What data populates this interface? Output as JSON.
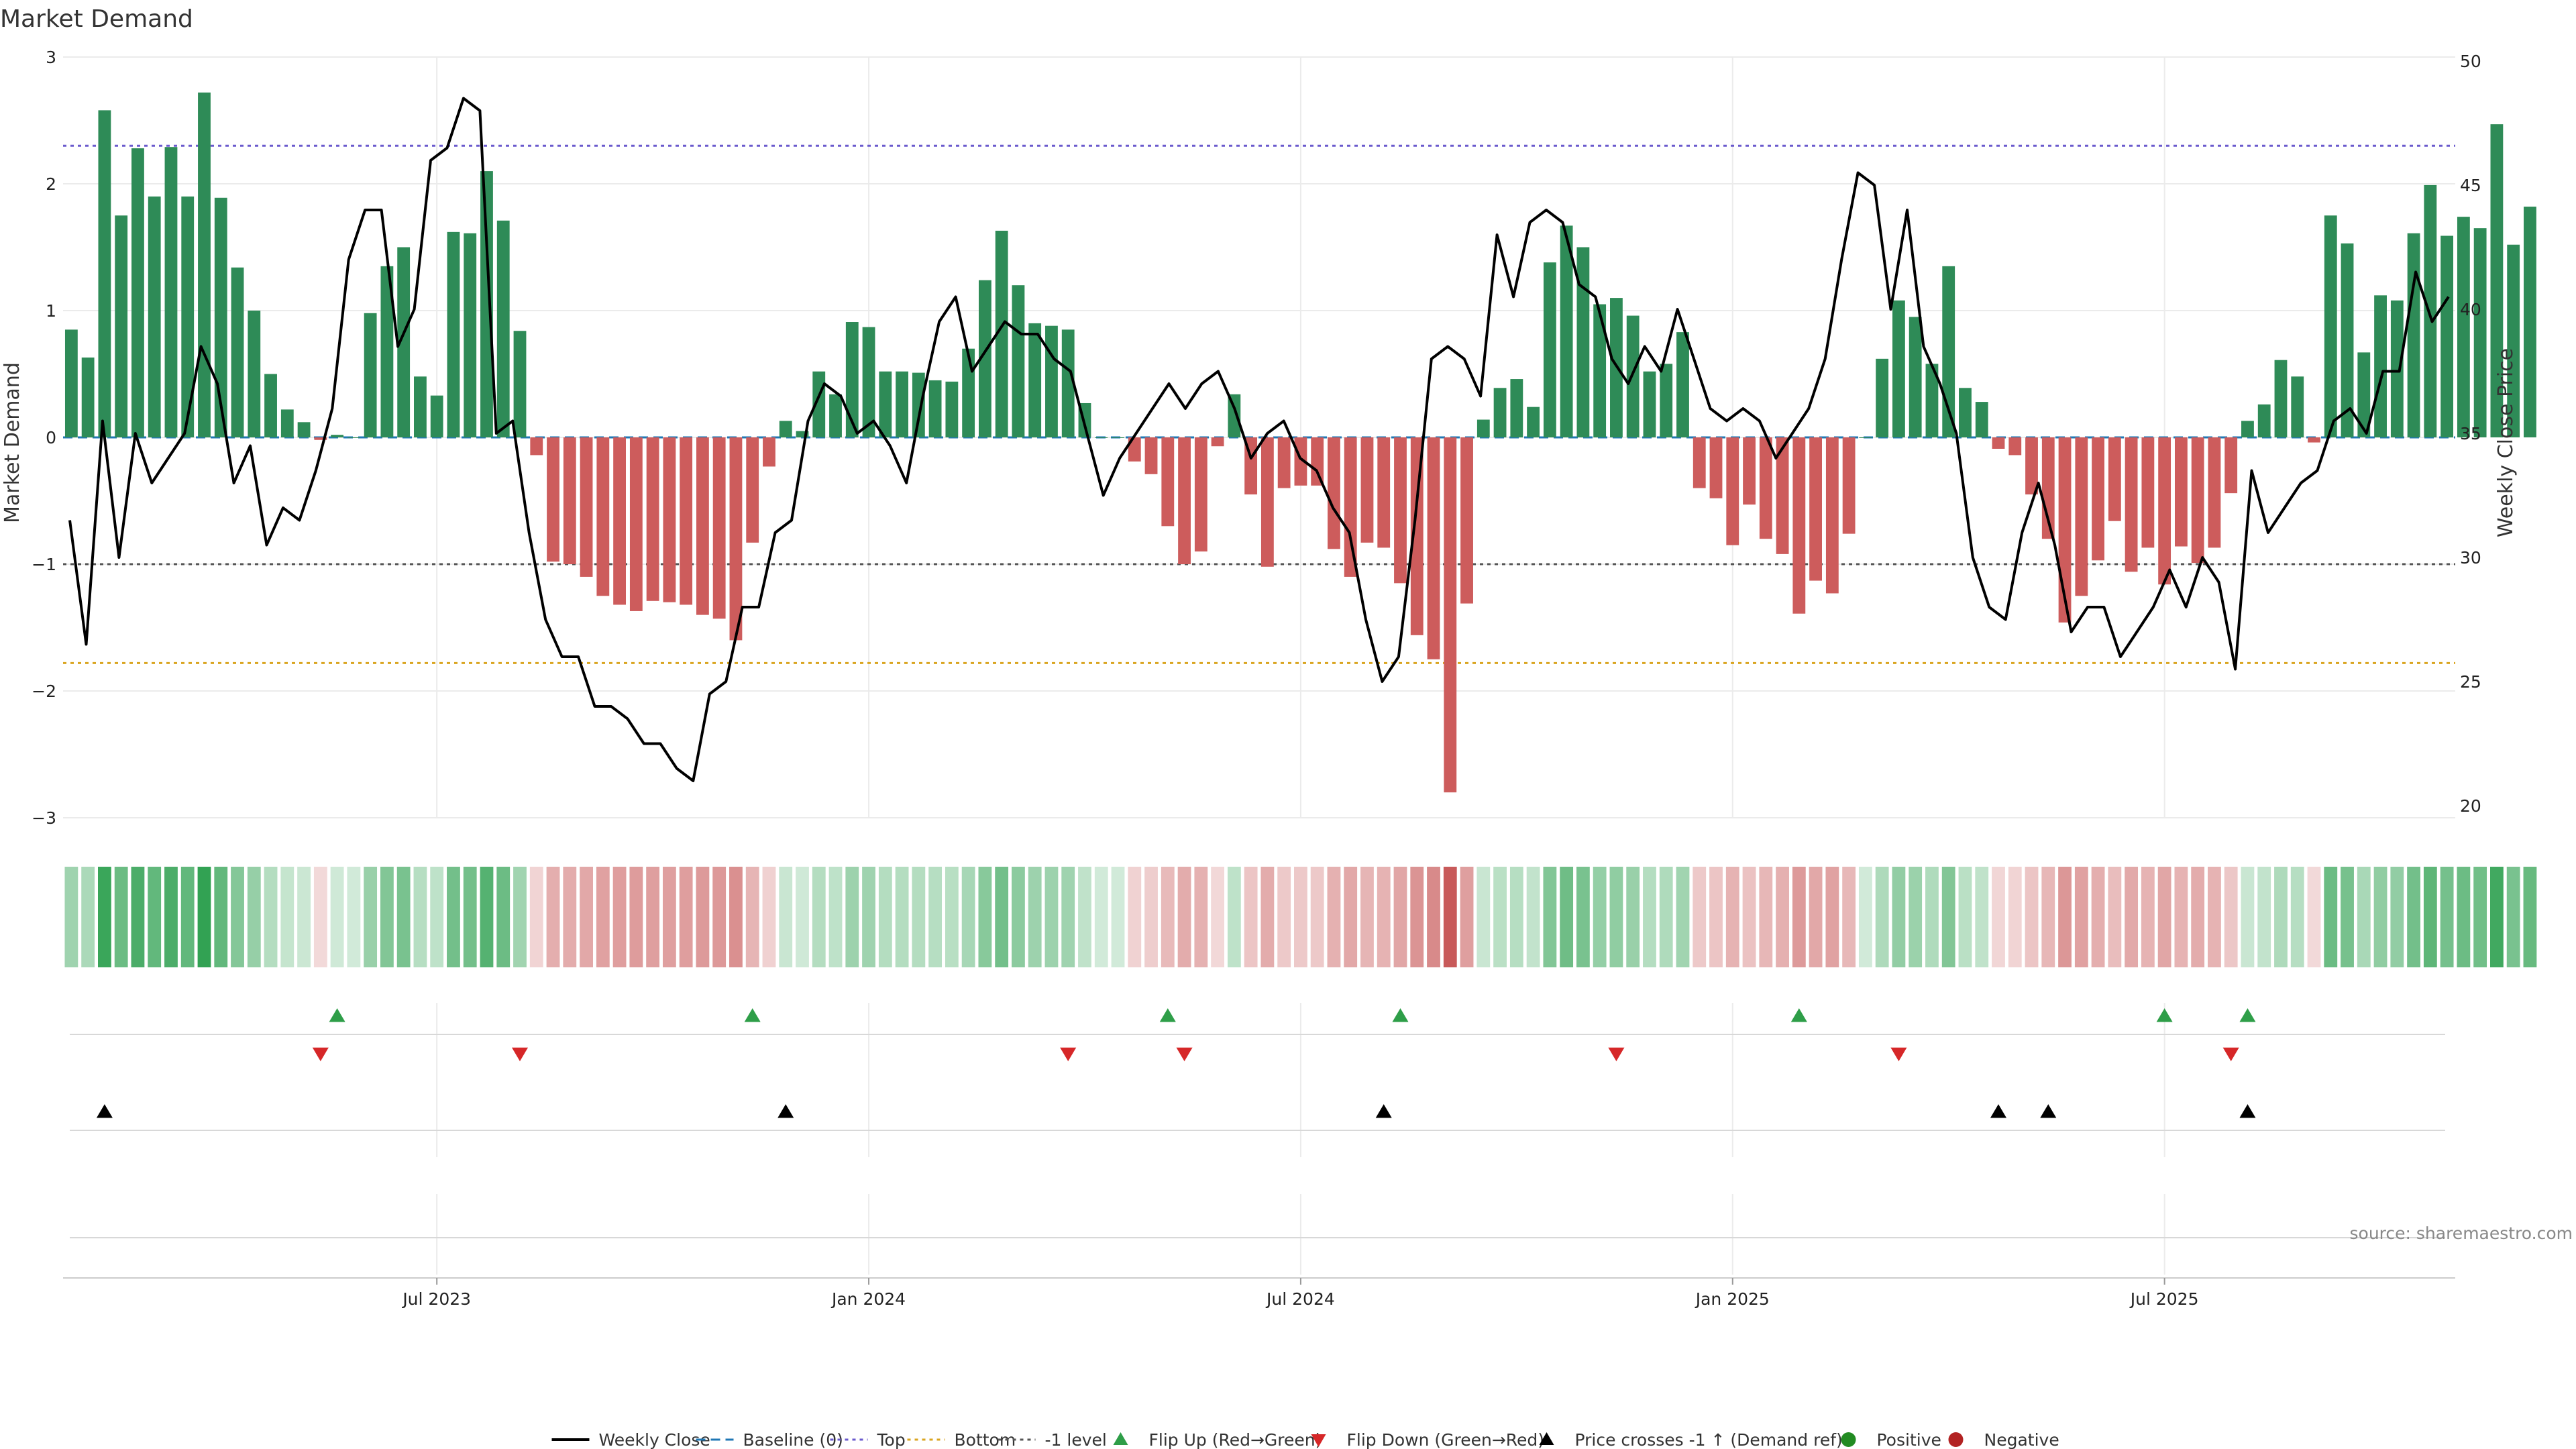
{
  "title": "Market Demand",
  "source": "source: sharemaestro.com",
  "colors": {
    "positive": "#2e8b57",
    "negative": "#cd5c5c",
    "price": "#000000",
    "top": "#6a5acd",
    "bottom": "#daa520",
    "minus1": "#555555",
    "baseline": "#1f77b4",
    "flip_up": "#2e9e48",
    "flip_down": "#d62728",
    "cross": "#000000",
    "pos_dot": "#228b22",
    "neg_dot": "#b22222"
  },
  "chart_data": {
    "type": "bar",
    "title": "Market Demand",
    "ylabel": "Market Demand",
    "ylabel_right": "Weekly Close Price",
    "ylim": [
      -3,
      3
    ],
    "ylim_right": [
      20,
      50
    ],
    "yticks": [
      "−3",
      "−2",
      "−1",
      "0",
      "1",
      "2",
      "3"
    ],
    "yticks_right": [
      "20",
      "25",
      "30",
      "35",
      "40",
      "45",
      "50"
    ],
    "x_tick_labels": [
      "Jul 2023",
      "Jan 2024",
      "Jul 2024",
      "Jan 2025",
      "Jul 2025"
    ],
    "x_tick_weeks": [
      22,
      48,
      74,
      100,
      126
    ],
    "weeks": 144,
    "reference_lines": {
      "top": 2.3,
      "bottom": -1.78,
      "minus1": -1,
      "baseline": 0
    },
    "series": [
      {
        "name": "Market Demand",
        "values": [
          0.85,
          0.63,
          2.58,
          1.75,
          2.28,
          1.9,
          2.29,
          1.9,
          2.72,
          1.89,
          1.34,
          1.0,
          0.5,
          0.22,
          0.12,
          -0.02,
          0.02,
          0.0,
          0.98,
          1.35,
          1.5,
          0.48,
          0.33,
          1.62,
          1.61,
          2.1,
          1.71,
          0.84,
          -0.14,
          -0.98,
          -1.0,
          -1.1,
          -1.25,
          -1.32,
          -1.37,
          -1.29,
          -1.3,
          -1.32,
          -1.4,
          -1.43,
          -1.6,
          -0.83,
          -0.23,
          0.13,
          0.05,
          0.52,
          0.34,
          0.91,
          0.87,
          0.52,
          0.52,
          0.51,
          0.45,
          0.44,
          0.7,
          1.24,
          1.63,
          1.2,
          0.9,
          0.88,
          0.85,
          0.27,
          0.0,
          0.0,
          -0.19,
          -0.29,
          -0.7,
          -1.0,
          -0.9,
          -0.07,
          0.34,
          -0.45,
          -1.02,
          -0.4,
          -0.38,
          -0.38,
          -0.88,
          -1.1,
          -0.83,
          -0.87,
          -1.15,
          -1.56,
          -1.75,
          -2.8,
          -1.31,
          0.14,
          0.39,
          0.46,
          0.24,
          1.38,
          1.67,
          1.5,
          1.05,
          1.1,
          0.96,
          0.52,
          0.58,
          0.83,
          -0.4,
          -0.48,
          -0.85,
          -0.53,
          -0.8,
          -0.92,
          -1.39,
          -1.13,
          -1.23,
          -0.76,
          0.0,
          0.62,
          1.08,
          0.95,
          0.58,
          1.35,
          0.39,
          0.28,
          -0.09,
          -0.14,
          -0.45,
          -0.8,
          -1.46,
          -1.25,
          -0.97,
          -0.66,
          -1.06,
          -0.87,
          -1.16,
          -0.86,
          -0.99,
          -0.87,
          -0.44,
          0.13,
          0.26,
          0.61,
          0.48,
          -0.04,
          1.75,
          1.53,
          0.67,
          1.12,
          1.08,
          1.61,
          1.99,
          1.59,
          1.74,
          1.65,
          2.47,
          1.52,
          1.82
        ]
      },
      {
        "name": "Weekly Close",
        "values": [
          31.5,
          26.5,
          35.5,
          30.0,
          35.0,
          33.0,
          34.0,
          35.0,
          38.5,
          37.0,
          33.0,
          34.5,
          30.5,
          32.0,
          31.5,
          33.5,
          36.0,
          42.0,
          44.0,
          44.0,
          38.5,
          40.0,
          46.0,
          46.5,
          48.5,
          48.0,
          35.0,
          35.5,
          31.0,
          27.5,
          26.0,
          26.0,
          24.0,
          24.0,
          23.5,
          22.5,
          22.5,
          21.5,
          21.0,
          24.5,
          25.0,
          28.0,
          28.0,
          31.0,
          31.5,
          35.5,
          37.0,
          36.5,
          35.0,
          35.5,
          34.5,
          33.0,
          36.5,
          39.5,
          40.5,
          37.5,
          38.5,
          39.5,
          39.0,
          39.0,
          38.0,
          37.5,
          35.0,
          32.5,
          34.0,
          35.0,
          36.0,
          37.0,
          36.0,
          37.0,
          37.5,
          36.0,
          34.0,
          35.0,
          35.5,
          34.0,
          33.5,
          32.0,
          31.0,
          27.5,
          25.0,
          26.0,
          31.5,
          38.0,
          38.5,
          38.0,
          36.5,
          43.0,
          40.5,
          43.5,
          44.0,
          43.5,
          41.0,
          40.5,
          38.0,
          37.0,
          38.5,
          37.5,
          40.0,
          38.0,
          36.0,
          35.5,
          36.0,
          35.5,
          34.0,
          35.0,
          36.0,
          38.0,
          42.0,
          45.5,
          45.0,
          40.0,
          44.0,
          38.5,
          37.0,
          35.0,
          30.0,
          28.0,
          27.5,
          31.0,
          33.0,
          30.5,
          27.0,
          28.0,
          28.0,
          26.0,
          27.0,
          28.0,
          29.5,
          28.0,
          30.0,
          29.0,
          25.5,
          33.5,
          31.0,
          32.0,
          33.0,
          33.5,
          35.5,
          36.0,
          35.0,
          37.5,
          37.5,
          41.5,
          39.5,
          40.5
        ]
      }
    ],
    "markers": {
      "flip_up_weeks": [
        16,
        41,
        66,
        80,
        104,
        126,
        131
      ],
      "flip_down_weeks": [
        15,
        27,
        60,
        67,
        93,
        110,
        130
      ],
      "price_cross_weeks": [
        2,
        43,
        79,
        116,
        119,
        131
      ]
    },
    "legend_position": "bottom-center",
    "legend": [
      {
        "label": "Weekly Close",
        "kind": "line",
        "color": "#000000"
      },
      {
        "label": "Baseline (0)",
        "kind": "dash",
        "color": "#1f77b4"
      },
      {
        "label": "Top",
        "kind": "dot",
        "color": "#6a5acd"
      },
      {
        "label": "Bottom",
        "kind": "dot",
        "color": "#daa520"
      },
      {
        "label": "-1 level",
        "kind": "dot",
        "color": "#555555"
      },
      {
        "label": "Flip Up (Red→Green)",
        "kind": "tri-up",
        "color": "#2e9e48"
      },
      {
        "label": "Flip Down (Green→Red)",
        "kind": "tri-down",
        "color": "#d62728"
      },
      {
        "label": "Price crosses -1 ↑ (Demand ref)",
        "kind": "tri-up",
        "color": "#000000"
      },
      {
        "label": "Positive",
        "kind": "circle",
        "color": "#228b22"
      },
      {
        "label": "Negative",
        "kind": "circle",
        "color": "#b22222"
      }
    ]
  }
}
